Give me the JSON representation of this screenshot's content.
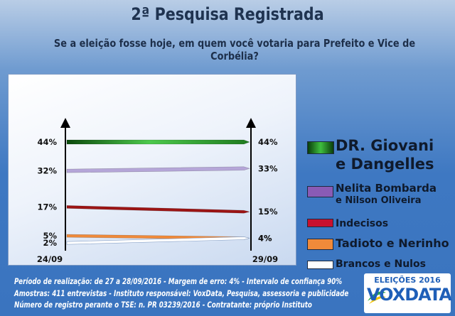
{
  "header": {
    "title": "2ª Pesquisa Registrada",
    "subtitle": "Se a eleição fosse hoje, em quem você votaria para Prefeito e Vice de Corbélia?"
  },
  "chart_data": {
    "type": "line",
    "x": [
      "24/09",
      "29/09"
    ],
    "series": [
      {
        "name": "DR. Giovani e Dangelles",
        "values": [
          44,
          44
        ],
        "color": "#2e9a2e",
        "start_label": "44%",
        "end_label": "44%"
      },
      {
        "name": "Nelita Bombarda e Nilson Oliveira",
        "values": [
          32,
          33
        ],
        "color": "#b5a6d8",
        "start_label": "32%",
        "end_label": "33%"
      },
      {
        "name": "Indecisos",
        "values": [
          17,
          15
        ],
        "color": "#9c1414",
        "start_label": "17%",
        "end_label": "15%"
      },
      {
        "name": "Tadioto e Nerinho",
        "values": [
          5,
          4
        ],
        "color": "#f08a3a",
        "start_label": "5%",
        "end_label": "4%"
      },
      {
        "name": "Brancos e Nulos",
        "values": [
          2,
          4
        ],
        "color": "#ffffff",
        "start_label": "2%",
        "end_label": "4%"
      }
    ],
    "ylim": [
      0,
      50
    ],
    "grid": false,
    "legend_position": "right"
  },
  "legend": [
    {
      "line1": "DR. Giovani",
      "line2": "e Dangelles",
      "color": "#2e9a2e"
    },
    {
      "line1": "Nelita Bombarda",
      "line2": "e Nilson Oliveira",
      "color": "#8a5bb5"
    },
    {
      "line1": "Indecisos",
      "line2": "",
      "color": "#c8102e"
    },
    {
      "line1": "Tadioto e Nerinho",
      "line2": "",
      "color": "#f08a3a"
    },
    {
      "line1": "Brancos e Nulos",
      "line2": "",
      "color": "#ffffff"
    }
  ],
  "footer": {
    "line1": "Período de realização:  de 27 a 28/09/2016 - Margem de erro: 4% - Intervalo de confiança 90%",
    "line2": "Amostras: 411 entrevistas -  Instituto responsável: VoxData, Pesquisa, assessoria e publicidade",
    "line3": "Número de registro perante o TSE: n. PR 03239/2016 - Contratante: próprio Instituto"
  },
  "logo": {
    "top": "ELEIÇÕES 2016",
    "main": "VOXDATA"
  }
}
